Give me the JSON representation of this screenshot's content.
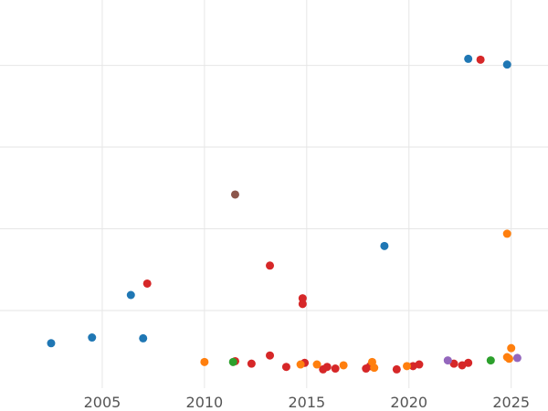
{
  "chart_data": {
    "type": "scatter",
    "title": "",
    "xlabel": "",
    "ylabel": "",
    "xlim": [
      2000.0,
      2026.8
    ],
    "ylim": [
      -0.2,
      4.55
    ],
    "grid": true,
    "y_gridlines": [
      0.75,
      1.75,
      2.75,
      3.75
    ],
    "xticks": [
      {
        "value": 2005,
        "label": "2005"
      },
      {
        "value": 2010,
        "label": "2010"
      },
      {
        "value": 2015,
        "label": "2015"
      },
      {
        "value": 2020,
        "label": "2020"
      },
      {
        "value": 2025,
        "label": "2025"
      }
    ],
    "series": [
      {
        "name": "blue",
        "color": "#1f77b4",
        "points": [
          [
            2002.5,
            0.35
          ],
          [
            2004.5,
            0.42
          ],
          [
            2006.4,
            0.94
          ],
          [
            2007.0,
            0.41
          ],
          [
            2018.8,
            1.54
          ],
          [
            2022.9,
            3.83
          ],
          [
            2024.8,
            3.76
          ]
        ]
      },
      {
        "name": "red",
        "color": "#d62728",
        "points": [
          [
            2007.2,
            1.08
          ],
          [
            2011.5,
            0.13
          ],
          [
            2012.3,
            0.1
          ],
          [
            2013.2,
            1.3
          ],
          [
            2013.2,
            0.2
          ],
          [
            2014.0,
            0.06
          ],
          [
            2014.8,
            0.9
          ],
          [
            2014.8,
            0.83
          ],
          [
            2014.9,
            0.11
          ],
          [
            2015.8,
            0.03
          ],
          [
            2016.0,
            0.06
          ],
          [
            2016.4,
            0.04
          ],
          [
            2017.9,
            0.04
          ],
          [
            2018.1,
            0.07
          ],
          [
            2019.4,
            0.03
          ],
          [
            2020.2,
            0.07
          ],
          [
            2020.5,
            0.09
          ],
          [
            2022.2,
            0.1
          ],
          [
            2022.6,
            0.08
          ],
          [
            2022.9,
            0.11
          ],
          [
            2023.5,
            3.82
          ]
        ]
      },
      {
        "name": "orange",
        "color": "#ff7f0e",
        "points": [
          [
            2010.0,
            0.12
          ],
          [
            2014.7,
            0.09
          ],
          [
            2015.5,
            0.09
          ],
          [
            2016.8,
            0.08
          ],
          [
            2018.2,
            0.12
          ],
          [
            2018.3,
            0.05
          ],
          [
            2019.9,
            0.07
          ],
          [
            2024.8,
            1.69
          ],
          [
            2024.8,
            0.18
          ],
          [
            2024.9,
            0.16
          ],
          [
            2025.0,
            0.29
          ]
        ]
      },
      {
        "name": "green",
        "color": "#2ca02c",
        "points": [
          [
            2011.4,
            0.12
          ],
          [
            2024.0,
            0.14
          ]
        ]
      },
      {
        "name": "brown",
        "color": "#8c564b",
        "points": [
          [
            2011.5,
            2.17
          ]
        ]
      },
      {
        "name": "purple",
        "color": "#9467bd",
        "points": [
          [
            2021.9,
            0.14
          ],
          [
            2025.3,
            0.17
          ]
        ]
      }
    ]
  }
}
